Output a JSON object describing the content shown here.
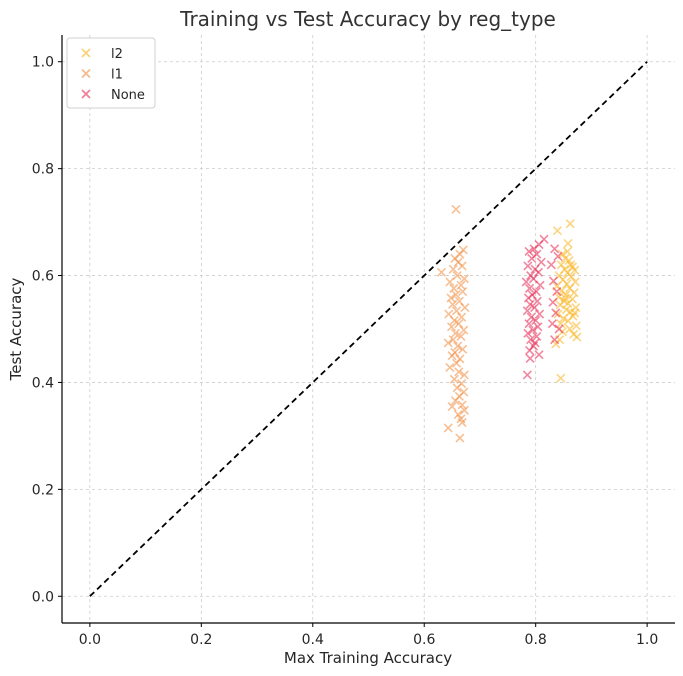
{
  "chart_data": {
    "type": "scatter",
    "title": "Training vs Test Accuracy by reg_type",
    "xlabel": "Max Training Accuracy",
    "ylabel": "Test Accuracy",
    "xlim": [
      -0.05,
      1.05
    ],
    "ylim": [
      -0.05,
      1.05
    ],
    "xticks": [
      "0.0",
      "0.2",
      "0.4",
      "0.6",
      "0.8",
      "1.0"
    ],
    "yticks": [
      "0.0",
      "0.2",
      "0.4",
      "0.6",
      "0.8",
      "1.0"
    ],
    "grid": true,
    "legend_position": "top-left",
    "reference_line": {
      "style": "dashed",
      "color": "#000000",
      "from": [
        0,
        0
      ],
      "to": [
        1,
        1
      ]
    },
    "marker": "x",
    "series": [
      {
        "name": "l2",
        "color": "#f9b21b",
        "points": [
          [
            0.839,
            0.684
          ],
          [
            0.862,
            0.697
          ],
          [
            0.858,
            0.66
          ],
          [
            0.848,
            0.64
          ],
          [
            0.853,
            0.632
          ],
          [
            0.86,
            0.628
          ],
          [
            0.846,
            0.62
          ],
          [
            0.866,
            0.616
          ],
          [
            0.852,
            0.612
          ],
          [
            0.87,
            0.61
          ],
          [
            0.857,
            0.605
          ],
          [
            0.842,
            0.6
          ],
          [
            0.864,
            0.598
          ],
          [
            0.849,
            0.592
          ],
          [
            0.871,
            0.588
          ],
          [
            0.856,
            0.584
          ],
          [
            0.838,
            0.58
          ],
          [
            0.861,
            0.576
          ],
          [
            0.847,
            0.572
          ],
          [
            0.869,
            0.568
          ],
          [
            0.854,
            0.564
          ],
          [
            0.841,
            0.56
          ],
          [
            0.866,
            0.556
          ],
          [
            0.851,
            0.552
          ],
          [
            0.858,
            0.548
          ],
          [
            0.844,
            0.545
          ],
          [
            0.872,
            0.54
          ],
          [
            0.855,
            0.536
          ],
          [
            0.862,
            0.532
          ],
          [
            0.84,
            0.528
          ],
          [
            0.867,
            0.524
          ],
          [
            0.85,
            0.52
          ],
          [
            0.858,
            0.515
          ],
          [
            0.845,
            0.51
          ],
          [
            0.873,
            0.506
          ],
          [
            0.861,
            0.5
          ],
          [
            0.848,
            0.495
          ],
          [
            0.868,
            0.49
          ],
          [
            0.874,
            0.485
          ],
          [
            0.843,
            0.48
          ],
          [
            0.836,
            0.472
          ],
          [
            0.845,
            0.408
          ],
          [
            0.857,
            0.645
          ],
          [
            0.863,
            0.62
          ],
          [
            0.853,
            0.558
          ],
          [
            0.87,
            0.53
          ]
        ]
      },
      {
        "name": "l1",
        "color": "#f08a3c",
        "points": [
          [
            0.657,
            0.724
          ],
          [
            0.67,
            0.648
          ],
          [
            0.664,
            0.64
          ],
          [
            0.655,
            0.632
          ],
          [
            0.661,
            0.625
          ],
          [
            0.668,
            0.618
          ],
          [
            0.652,
            0.612
          ],
          [
            0.631,
            0.606
          ],
          [
            0.659,
            0.6
          ],
          [
            0.672,
            0.594
          ],
          [
            0.646,
            0.588
          ],
          [
            0.666,
            0.582
          ],
          [
            0.653,
            0.576
          ],
          [
            0.669,
            0.57
          ],
          [
            0.657,
            0.564
          ],
          [
            0.648,
            0.558
          ],
          [
            0.663,
            0.552
          ],
          [
            0.651,
            0.546
          ],
          [
            0.673,
            0.54
          ],
          [
            0.658,
            0.534
          ],
          [
            0.644,
            0.528
          ],
          [
            0.667,
            0.522
          ],
          [
            0.654,
            0.516
          ],
          [
            0.662,
            0.51
          ],
          [
            0.649,
            0.504
          ],
          [
            0.671,
            0.498
          ],
          [
            0.656,
            0.492
          ],
          [
            0.666,
            0.486
          ],
          [
            0.652,
            0.48
          ],
          [
            0.643,
            0.474
          ],
          [
            0.66,
            0.468
          ],
          [
            0.669,
            0.462
          ],
          [
            0.655,
            0.456
          ],
          [
            0.65,
            0.45
          ],
          [
            0.664,
            0.444
          ],
          [
            0.658,
            0.436
          ],
          [
            0.646,
            0.428
          ],
          [
            0.662,
            0.42
          ],
          [
            0.672,
            0.414
          ],
          [
            0.654,
            0.406
          ],
          [
            0.667,
            0.398
          ],
          [
            0.659,
            0.39
          ],
          [
            0.671,
            0.382
          ],
          [
            0.663,
            0.374
          ],
          [
            0.656,
            0.366
          ],
          [
            0.668,
            0.358
          ],
          [
            0.65,
            0.355
          ],
          [
            0.672,
            0.348
          ],
          [
            0.661,
            0.34
          ],
          [
            0.666,
            0.332
          ],
          [
            0.668,
            0.325
          ],
          [
            0.643,
            0.315
          ],
          [
            0.664,
            0.296
          ]
        ]
      },
      {
        "name": "None",
        "color": "#e8234f",
        "points": [
          [
            0.806,
            0.658
          ],
          [
            0.797,
            0.65
          ],
          [
            0.788,
            0.645
          ],
          [
            0.802,
            0.64
          ],
          [
            0.793,
            0.632
          ],
          [
            0.81,
            0.625
          ],
          [
            0.786,
            0.618
          ],
          [
            0.799,
            0.612
          ],
          [
            0.805,
            0.606
          ],
          [
            0.791,
            0.6
          ],
          [
            0.796,
            0.594
          ],
          [
            0.783,
            0.588
          ],
          [
            0.808,
            0.582
          ],
          [
            0.789,
            0.576
          ],
          [
            0.801,
            0.57
          ],
          [
            0.794,
            0.564
          ],
          [
            0.787,
            0.558
          ],
          [
            0.803,
            0.552
          ],
          [
            0.79,
            0.546
          ],
          [
            0.798,
            0.54
          ],
          [
            0.785,
            0.534
          ],
          [
            0.807,
            0.528
          ],
          [
            0.792,
            0.522
          ],
          [
            0.8,
            0.516
          ],
          [
            0.788,
            0.51
          ],
          [
            0.804,
            0.504
          ],
          [
            0.795,
            0.498
          ],
          [
            0.786,
            0.492
          ],
          [
            0.802,
            0.486
          ],
          [
            0.791,
            0.48
          ],
          [
            0.799,
            0.474
          ],
          [
            0.796,
            0.468
          ],
          [
            0.789,
            0.46
          ],
          [
            0.806,
            0.452
          ],
          [
            0.79,
            0.445
          ],
          [
            0.785,
            0.414
          ],
          [
            0.815,
            0.668
          ],
          [
            0.834,
            0.65
          ],
          [
            0.84,
            0.636
          ],
          [
            0.828,
            0.62
          ],
          [
            0.832,
            0.59
          ],
          [
            0.838,
            0.57
          ],
          [
            0.831,
            0.55
          ],
          [
            0.836,
            0.53
          ],
          [
            0.83,
            0.51
          ],
          [
            0.842,
            0.5
          ],
          [
            0.834,
            0.48
          ]
        ]
      }
    ]
  }
}
